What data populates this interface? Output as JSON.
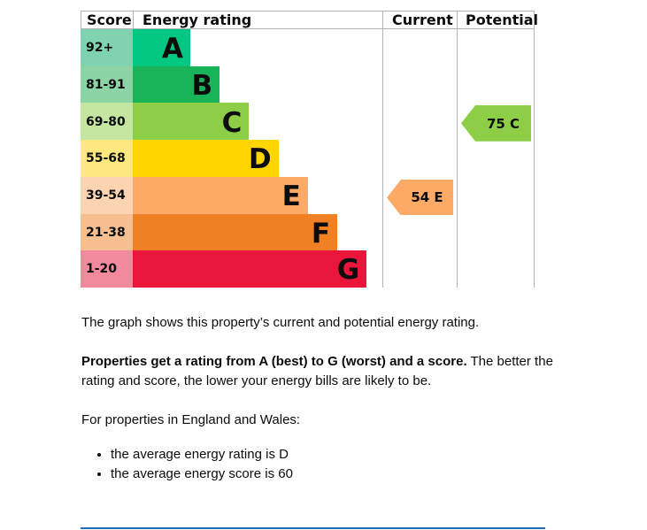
{
  "headers": {
    "score": "Score",
    "energy_rating": "Energy rating",
    "current": "Current",
    "potential": "Potential"
  },
  "bands": [
    {
      "score": "92+",
      "letter": "A",
      "color": "#00c781",
      "score_color": "#7fd3b1"
    },
    {
      "score": "81-91",
      "letter": "B",
      "color": "#19b459",
      "score_color": "#8cd4a6"
    },
    {
      "score": "69-80",
      "letter": "C",
      "color": "#8dce46",
      "score_color": "#c5e6a1"
    },
    {
      "score": "55-68",
      "letter": "D",
      "color": "#ffd500",
      "score_color": "#ffe97e"
    },
    {
      "score": "39-54",
      "letter": "E",
      "color": "#fcaa65",
      "score_color": "#fdd4b1"
    },
    {
      "score": "21-38",
      "letter": "F",
      "color": "#ef8023",
      "score_color": "#f6bf91"
    },
    {
      "score": "1-20",
      "letter": "G",
      "color": "#e9153b",
      "score_color": "#f3899c"
    }
  ],
  "current": {
    "label": "54 E",
    "band": "E",
    "color": "#fcaa65"
  },
  "potential": {
    "label": "75 C",
    "band": "C",
    "color": "#8dce46"
  },
  "text": {
    "intro": "The graph shows this property’s current and potential energy rating.",
    "bold": "Properties get a rating from A (best) to G (worst) and a score.",
    "rest": " The better the rating and score, the lower your energy bills are likely to be.",
    "region": "For properties in England and Wales:",
    "bullets": [
      "the average energy rating is D",
      "the average energy score is 60"
    ]
  },
  "rule_color": "#1d70b8"
}
